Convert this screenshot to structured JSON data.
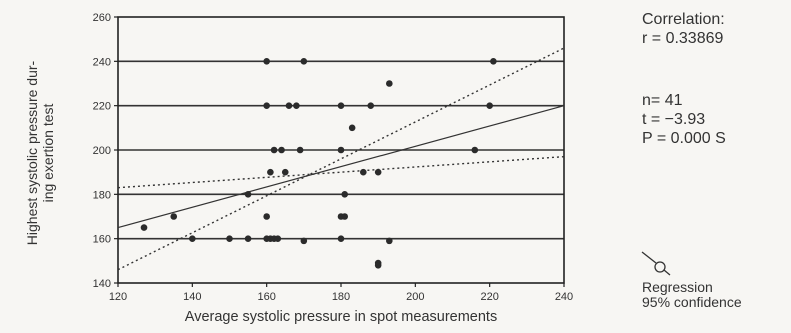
{
  "chart_data": {
    "type": "scatter",
    "xlabel": "Average systolic pressure in spot measurements",
    "ylabel_lines": [
      "Highest systolic pressure dur-",
      "ing exertion test"
    ],
    "xlim": [
      120,
      240
    ],
    "ylim": [
      140,
      260
    ],
    "x_ticks": [
      "120",
      "140",
      "160",
      "180",
      "200",
      "220",
      "240"
    ],
    "y_ticks": [
      "140",
      "160",
      "180",
      "200",
      "220",
      "240",
      "260"
    ],
    "grid": "horizontal",
    "points": [
      [
        127,
        165
      ],
      [
        135,
        170
      ],
      [
        140,
        160
      ],
      [
        150,
        160
      ],
      [
        155,
        160
      ],
      [
        155,
        180
      ],
      [
        160,
        240
      ],
      [
        160,
        220
      ],
      [
        160,
        170
      ],
      [
        160,
        160
      ],
      [
        161,
        160
      ],
      [
        161,
        190
      ],
      [
        162,
        160
      ],
      [
        162,
        200
      ],
      [
        163,
        160
      ],
      [
        164,
        200
      ],
      [
        165,
        190
      ],
      [
        166,
        220
      ],
      [
        168,
        220
      ],
      [
        169,
        200
      ],
      [
        170,
        240
      ],
      [
        170,
        159
      ],
      [
        180,
        220
      ],
      [
        180,
        200
      ],
      [
        180,
        170
      ],
      [
        180,
        160
      ],
      [
        181,
        180
      ],
      [
        181,
        170
      ],
      [
        183,
        210
      ],
      [
        186,
        190
      ],
      [
        188,
        220
      ],
      [
        190,
        190
      ],
      [
        190,
        149
      ],
      [
        190,
        148
      ],
      [
        193,
        230
      ],
      [
        193,
        159
      ],
      [
        216,
        200
      ],
      [
        220,
        220
      ],
      [
        221,
        240
      ]
    ],
    "regression": {
      "x1": 120,
      "y1": 165,
      "x2": 240,
      "y2": 220
    },
    "confidence_upper": {
      "x1": 120,
      "y1": 146,
      "x2": 240,
      "y2": 246
    },
    "confidence_lower": {
      "x1": 120,
      "y1": 183,
      "x2": 240,
      "y2": 197
    }
  },
  "stats": {
    "corr_label": "Correlation:",
    "r_text": "r = 0.33869",
    "n_text": "n= 41",
    "t_text": "t = −3.93",
    "p_text": "P = 0.000   S"
  },
  "legend": {
    "regression_label": "Regression",
    "confidence_label": "95% confidence"
  }
}
